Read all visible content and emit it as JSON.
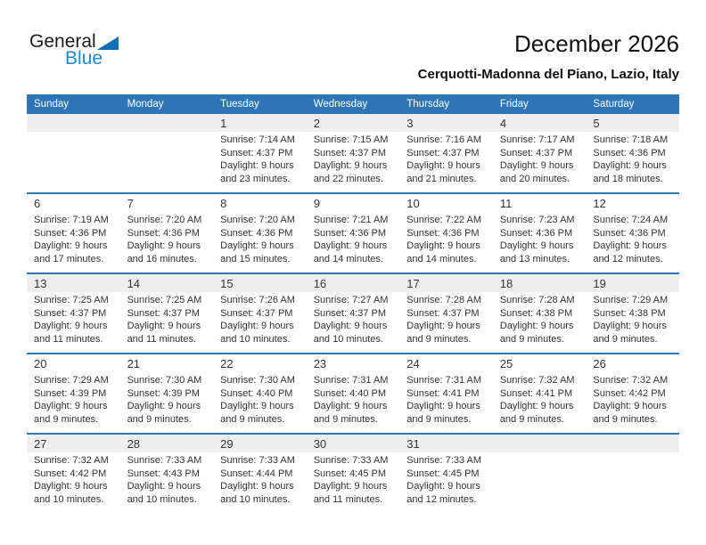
{
  "logo": {
    "line1": "General",
    "line2": "Blue"
  },
  "header": {
    "title": "December 2026",
    "subtitle": "Cerquotti-Madonna del Piano, Lazio, Italy"
  },
  "colors": {
    "header_bar_blue": "#2e75b6",
    "week_divider_blue": "#2e75b6",
    "shaded_strip_gray": "#efefef",
    "logo_triangle_blue": "#1271b5",
    "logo_text_blue": "#1b8ace",
    "body_text": "#333333"
  },
  "calendar": {
    "weekday_headers": [
      "Sunday",
      "Monday",
      "Tuesday",
      "Wednesday",
      "Thursday",
      "Friday",
      "Saturday"
    ],
    "labels": {
      "sunrise": "Sunrise:",
      "sunset": "Sunset:",
      "daylight": "Daylight:"
    },
    "weeks": [
      {
        "shaded": true,
        "days": [
          null,
          null,
          {
            "date": "1",
            "sunrise": "7:14 AM",
            "sunset": "4:37 PM",
            "daylight": "9 hours and 23 minutes."
          },
          {
            "date": "2",
            "sunrise": "7:15 AM",
            "sunset": "4:37 PM",
            "daylight": "9 hours and 22 minutes."
          },
          {
            "date": "3",
            "sunrise": "7:16 AM",
            "sunset": "4:37 PM",
            "daylight": "9 hours and 21 minutes."
          },
          {
            "date": "4",
            "sunrise": "7:17 AM",
            "sunset": "4:37 PM",
            "daylight": "9 hours and 20 minutes."
          },
          {
            "date": "5",
            "sunrise": "7:18 AM",
            "sunset": "4:36 PM",
            "daylight": "9 hours and 18 minutes."
          }
        ]
      },
      {
        "shaded": false,
        "days": [
          {
            "date": "6",
            "sunrise": "7:19 AM",
            "sunset": "4:36 PM",
            "daylight": "9 hours and 17 minutes."
          },
          {
            "date": "7",
            "sunrise": "7:20 AM",
            "sunset": "4:36 PM",
            "daylight": "9 hours and 16 minutes."
          },
          {
            "date": "8",
            "sunrise": "7:20 AM",
            "sunset": "4:36 PM",
            "daylight": "9 hours and 15 minutes."
          },
          {
            "date": "9",
            "sunrise": "7:21 AM",
            "sunset": "4:36 PM",
            "daylight": "9 hours and 14 minutes."
          },
          {
            "date": "10",
            "sunrise": "7:22 AM",
            "sunset": "4:36 PM",
            "daylight": "9 hours and 14 minutes."
          },
          {
            "date": "11",
            "sunrise": "7:23 AM",
            "sunset": "4:36 PM",
            "daylight": "9 hours and 13 minutes."
          },
          {
            "date": "12",
            "sunrise": "7:24 AM",
            "sunset": "4:36 PM",
            "daylight": "9 hours and 12 minutes."
          }
        ]
      },
      {
        "shaded": true,
        "days": [
          {
            "date": "13",
            "sunrise": "7:25 AM",
            "sunset": "4:37 PM",
            "daylight": "9 hours and 11 minutes."
          },
          {
            "date": "14",
            "sunrise": "7:25 AM",
            "sunset": "4:37 PM",
            "daylight": "9 hours and 11 minutes."
          },
          {
            "date": "15",
            "sunrise": "7:26 AM",
            "sunset": "4:37 PM",
            "daylight": "9 hours and 10 minutes."
          },
          {
            "date": "16",
            "sunrise": "7:27 AM",
            "sunset": "4:37 PM",
            "daylight": "9 hours and 10 minutes."
          },
          {
            "date": "17",
            "sunrise": "7:28 AM",
            "sunset": "4:37 PM",
            "daylight": "9 hours and 9 minutes."
          },
          {
            "date": "18",
            "sunrise": "7:28 AM",
            "sunset": "4:38 PM",
            "daylight": "9 hours and 9 minutes."
          },
          {
            "date": "19",
            "sunrise": "7:29 AM",
            "sunset": "4:38 PM",
            "daylight": "9 hours and 9 minutes."
          }
        ]
      },
      {
        "shaded": false,
        "days": [
          {
            "date": "20",
            "sunrise": "7:29 AM",
            "sunset": "4:39 PM",
            "daylight": "9 hours and 9 minutes."
          },
          {
            "date": "21",
            "sunrise": "7:30 AM",
            "sunset": "4:39 PM",
            "daylight": "9 hours and 9 minutes."
          },
          {
            "date": "22",
            "sunrise": "7:30 AM",
            "sunset": "4:40 PM",
            "daylight": "9 hours and 9 minutes."
          },
          {
            "date": "23",
            "sunrise": "7:31 AM",
            "sunset": "4:40 PM",
            "daylight": "9 hours and 9 minutes."
          },
          {
            "date": "24",
            "sunrise": "7:31 AM",
            "sunset": "4:41 PM",
            "daylight": "9 hours and 9 minutes."
          },
          {
            "date": "25",
            "sunrise": "7:32 AM",
            "sunset": "4:41 PM",
            "daylight": "9 hours and 9 minutes."
          },
          {
            "date": "26",
            "sunrise": "7:32 AM",
            "sunset": "4:42 PM",
            "daylight": "9 hours and 9 minutes."
          }
        ]
      },
      {
        "shaded": true,
        "days": [
          {
            "date": "27",
            "sunrise": "7:32 AM",
            "sunset": "4:42 PM",
            "daylight": "9 hours and 10 minutes."
          },
          {
            "date": "28",
            "sunrise": "7:33 AM",
            "sunset": "4:43 PM",
            "daylight": "9 hours and 10 minutes."
          },
          {
            "date": "29",
            "sunrise": "7:33 AM",
            "sunset": "4:44 PM",
            "daylight": "9 hours and 10 minutes."
          },
          {
            "date": "30",
            "sunrise": "7:33 AM",
            "sunset": "4:45 PM",
            "daylight": "9 hours and 11 minutes."
          },
          {
            "date": "31",
            "sunrise": "7:33 AM",
            "sunset": "4:45 PM",
            "daylight": "9 hours and 12 minutes."
          },
          null,
          null
        ]
      }
    ]
  }
}
